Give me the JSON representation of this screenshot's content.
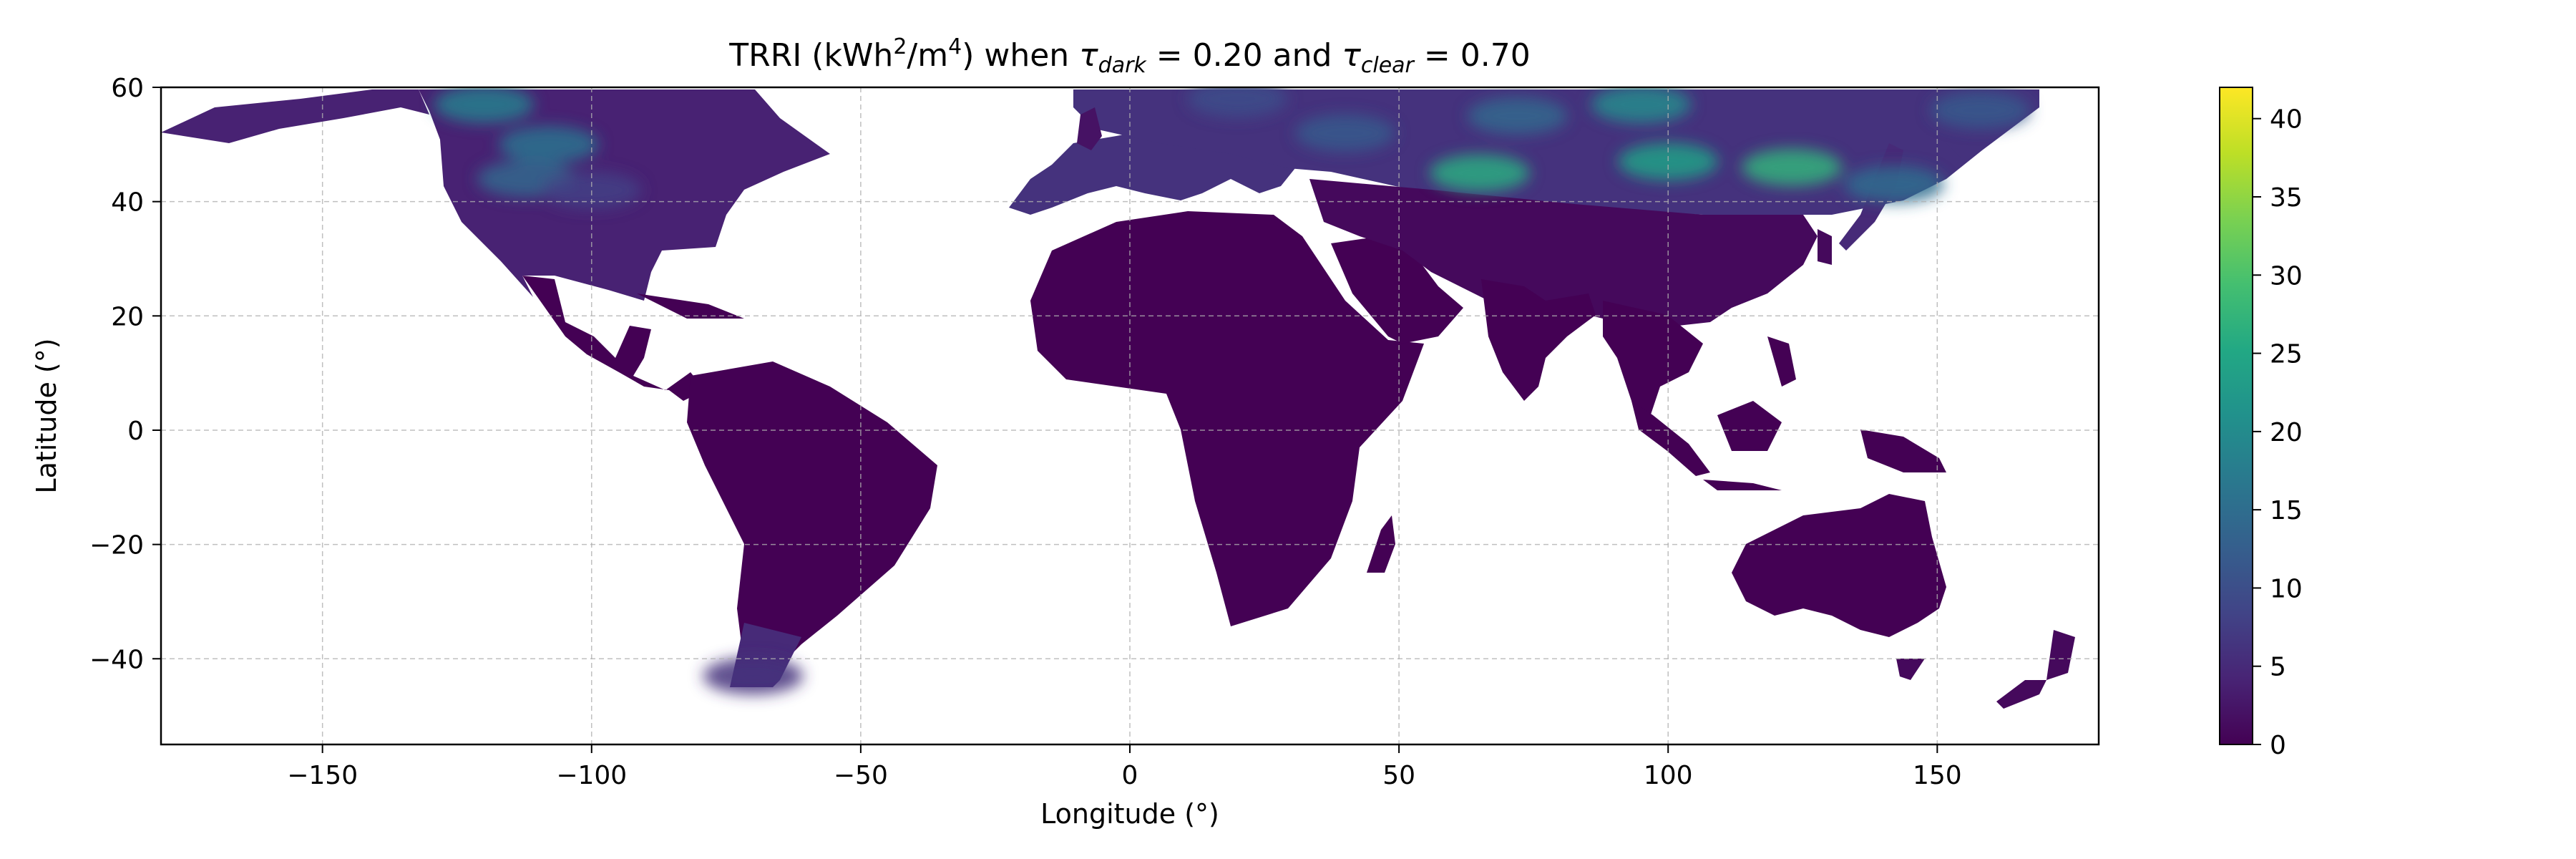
{
  "title": {
    "prefix": "TRRI (kWh",
    "sup1": "2",
    "mid": "/m",
    "sup2": "4",
    "after_units": ") when ",
    "tau": "τ",
    "sub_dark": "dark",
    "dark_value": " = 0.20 and ",
    "sub_clear": "clear",
    "clear_value": " = 0.70"
  },
  "chart_data": {
    "type": "heatmap",
    "title": "TRRI (kWh²/m⁴) when τ_dark = 0.20 and τ_clear = 0.70",
    "xlabel": "Longitude (°)",
    "ylabel": "Latitude (°)",
    "xlim": [
      -180,
      180
    ],
    "ylim": [
      -55,
      60
    ],
    "x_ticks": [
      -150,
      -100,
      -50,
      0,
      50,
      100,
      150
    ],
    "x_tick_labels": [
      "−150",
      "−100",
      "−50",
      "0",
      "50",
      "100",
      "150"
    ],
    "y_ticks": [
      -40,
      -20,
      0,
      20,
      40,
      60
    ],
    "y_tick_labels": [
      "−40",
      "−20",
      "0",
      "20",
      "40",
      "60"
    ],
    "grid": true,
    "colormap": "viridis",
    "colorbar": {
      "range": [
        0,
        42
      ],
      "ticks": [
        0,
        5,
        10,
        15,
        20,
        25,
        30,
        35,
        40
      ],
      "tick_labels": [
        "0",
        "5",
        "10",
        "15",
        "20",
        "25",
        "30",
        "35",
        "40"
      ]
    },
    "background_value": 0,
    "regions": [
      {
        "name": "North America",
        "value": 4
      },
      {
        "name": "Central America",
        "value": 0
      },
      {
        "name": "South America",
        "value": 0
      },
      {
        "name": "Patagonia",
        "value": 5
      },
      {
        "name": "Africa",
        "value": 0
      },
      {
        "name": "Madagascar",
        "value": 0
      },
      {
        "name": "Arabia",
        "value": 0
      },
      {
        "name": "India",
        "value": 0
      },
      {
        "name": "Southeast Asia",
        "value": 0
      },
      {
        "name": "Borneo",
        "value": 0
      },
      {
        "name": "Sumatra",
        "value": 0
      },
      {
        "name": "New Guinea",
        "value": 0
      },
      {
        "name": "Japan",
        "value": 5
      },
      {
        "name": "Great Britain",
        "value": 2
      },
      {
        "name": "Australia",
        "value": 0
      },
      {
        "name": "New Zealand",
        "value": 1
      },
      {
        "name": "Tasmania",
        "value": 1
      },
      {
        "name": "Eurasia north",
        "value": 6
      },
      {
        "name": "Eurasia south",
        "value": 1
      }
    ],
    "hotspots": [
      {
        "name": "Central Asian steppe",
        "lon": 65,
        "lat": 45,
        "value": 26
      },
      {
        "name": "Mongolia",
        "lon": 100,
        "lat": 47,
        "value": 24
      },
      {
        "name": "Manchuria",
        "lon": 123,
        "lat": 46,
        "value": 27
      },
      {
        "name": "Siberia north",
        "lon": 95,
        "lat": 57,
        "value": 20
      },
      {
        "name": "Western Siberia",
        "lon": 72,
        "lat": 55,
        "value": 14
      },
      {
        "name": "Canadian Prairies",
        "lon": -108,
        "lat": 50,
        "value": 16
      },
      {
        "name": "Rocky Mountains",
        "lon": -112,
        "lat": 44,
        "value": 14
      },
      {
        "name": "Western Canada north",
        "lon": -120,
        "lat": 57,
        "value": 18
      },
      {
        "name": "US Great Plains",
        "lon": -100,
        "lat": 42,
        "value": 8
      },
      {
        "name": "Scandinavia",
        "lon": 20,
        "lat": 58,
        "value": 10
      },
      {
        "name": "Eastern Europe",
        "lon": 40,
        "lat": 52,
        "value": 12
      },
      {
        "name": "Hokkaido",
        "lon": 142,
        "lat": 43,
        "value": 15
      },
      {
        "name": "Kamchatka",
        "lon": 158,
        "lat": 56,
        "value": 12
      },
      {
        "name": "Patagonia south",
        "lon": -70,
        "lat": -43,
        "value": 6
      }
    ]
  }
}
